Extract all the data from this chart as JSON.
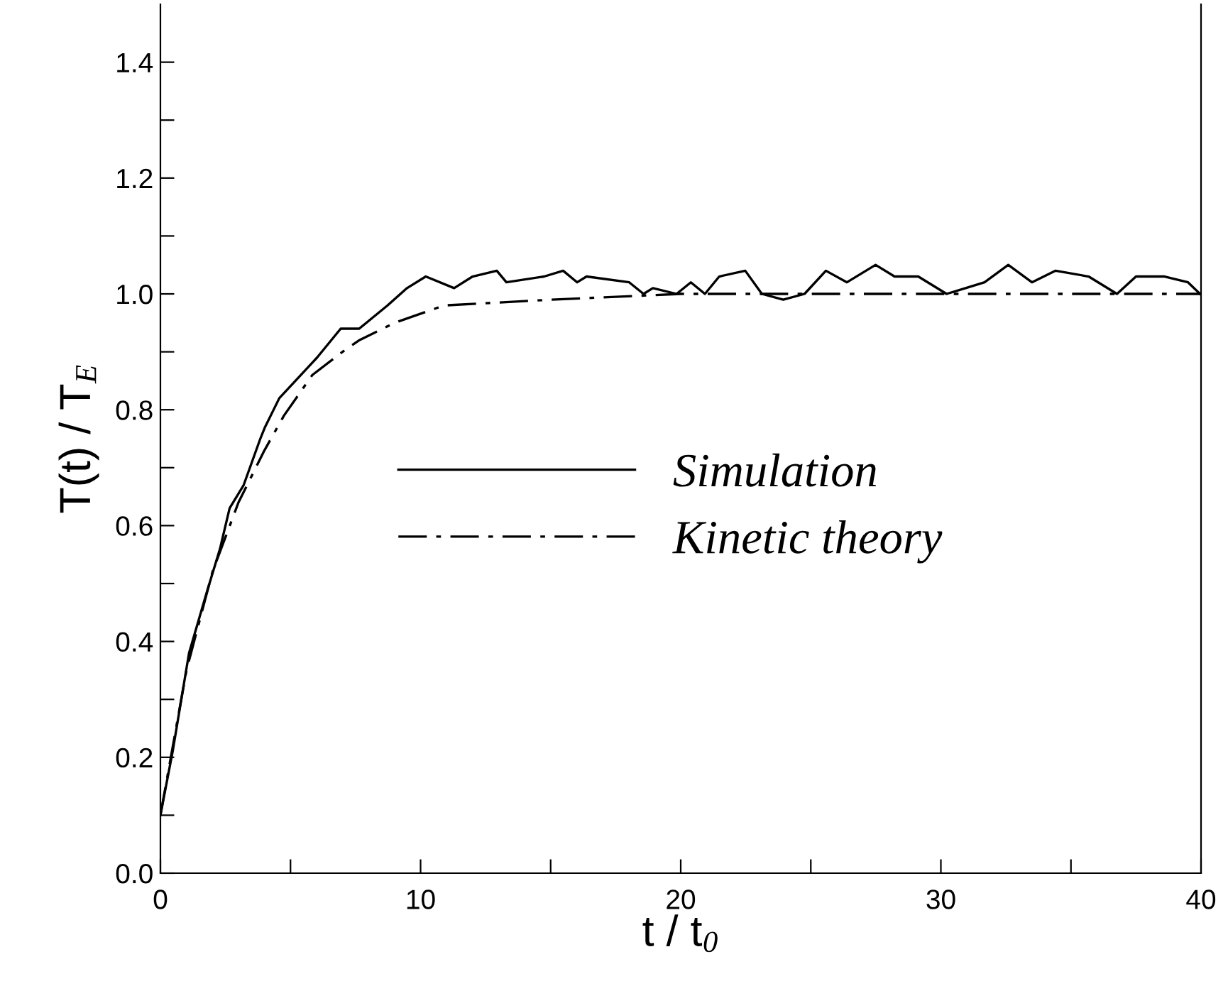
{
  "chart_data": {
    "type": "line",
    "xlabel": "t / t$_{0}$",
    "ylabel": "T(t) / T$_{E}$",
    "xlim": [
      0,
      40
    ],
    "ylim": [
      0,
      1.5
    ],
    "xticks": [
      0,
      {
        "value": 5,
        "label": null
      },
      10,
      {
        "value": 15,
        "label": null
      },
      20,
      {
        "value": 25,
        "label": null
      },
      30,
      {
        "value": 35,
        "label": null
      },
      40
    ],
    "yticks": [
      {
        "value": 0,
        "label": "0.0"
      },
      {
        "value": 0.1,
        "label": null
      },
      {
        "value": 0.2,
        "label": "0.2"
      },
      {
        "value": 0.3,
        "label": null
      },
      {
        "value": 0.4,
        "label": "0.4"
      },
      {
        "value": 0.5,
        "label": null
      },
      {
        "value": 0.6,
        "label": "0.6"
      },
      {
        "value": 0.7,
        "label": null
      },
      {
        "value": 0.8,
        "label": "0.8"
      },
      {
        "value": 0.9,
        "label": null
      },
      {
        "value": 1.0,
        "label": "1.0"
      },
      {
        "value": 1.1,
        "label": null
      },
      {
        "value": 1.2,
        "label": "1.2"
      },
      {
        "value": 1.3,
        "label": null
      },
      {
        "value": 1.4,
        "label": "1.4"
      }
    ],
    "grid": false,
    "legend": "center",
    "marker": "none",
    "series": [
      {
        "name": "Simulation",
        "color": "#000000",
        "line_style": "solid",
        "x": [
          0,
          0.47,
          1.1,
          1.75,
          2.29,
          2.66,
          3.2,
          3.84,
          4.02,
          4.57,
          6.02,
          6.93,
          7.64,
          8.73,
          9.48,
          10.2,
          11.29,
          12.0,
          12.93,
          13.3,
          14.75,
          15.48,
          16.02,
          16.38,
          18.02,
          18.57,
          18.93,
          19.84,
          20.39,
          20.93,
          21.48,
          22.48,
          23.12,
          23.94,
          24.76,
          25.58,
          26.39,
          27.49,
          28.22,
          29.13,
          30.22,
          30.95,
          31.68,
          32.59,
          33.5,
          34.41,
          35.68,
          36.77,
          37.5,
          38.6,
          39.5,
          39.96
        ],
        "values": [
          0.1,
          0.21,
          0.38,
          0.48,
          0.56,
          0.63,
          0.67,
          0.75,
          0.77,
          0.82,
          0.89,
          0.94,
          0.94,
          0.98,
          1.01,
          1.03,
          1.01,
          1.03,
          1.04,
          1.02,
          1.03,
          1.04,
          1.02,
          1.03,
          1.02,
          1.0,
          1.01,
          1.0,
          1.02,
          1.0,
          1.03,
          1.04,
          1.0,
          0.99,
          1.0,
          1.04,
          1.02,
          1.05,
          1.03,
          1.03,
          1.0,
          1.01,
          1.02,
          1.05,
          1.02,
          1.04,
          1.03,
          1.0,
          1.03,
          1.03,
          1.02,
          1.0
        ]
      },
      {
        "name": "Kinetic theory",
        "color": "#000000",
        "line_style": "dashdot",
        "x": [
          0,
          1,
          2,
          3,
          4,
          4.75,
          5.84,
          7,
          7.64,
          9,
          10.9,
          15,
          20,
          30,
          40
        ],
        "values": [
          0.1,
          0.35,
          0.52,
          0.64,
          0.73,
          0.79,
          0.86,
          0.9,
          0.92,
          0.95,
          0.98,
          0.99,
          1.0,
          1.0,
          1.0
        ]
      }
    ]
  }
}
